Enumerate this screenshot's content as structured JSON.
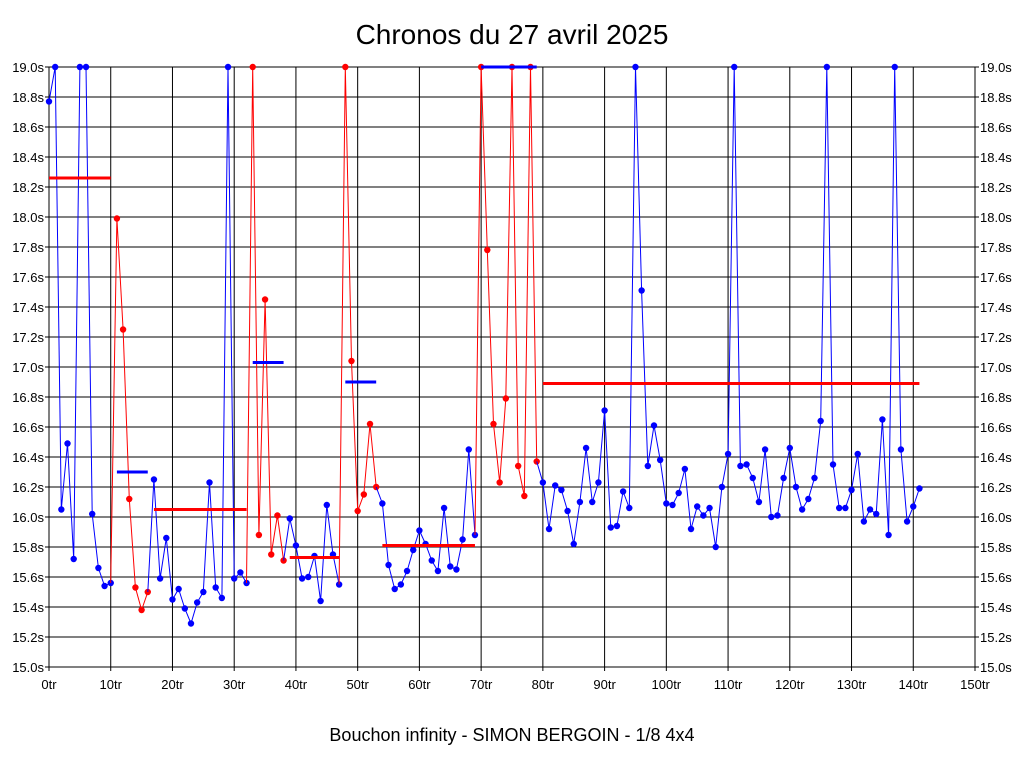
{
  "chart_data": {
    "type": "line",
    "title": "Chronos du 27 avril 2025",
    "xlabel": "Bouchon infinity - SIMON BERGOIN - 1/8 4x4",
    "ylabel": "",
    "xlim": [
      0,
      150
    ],
    "ylim": [
      15.0,
      19.0
    ],
    "x_ticks": [
      "0tr",
      "10tr",
      "20tr",
      "30tr",
      "40tr",
      "50tr",
      "60tr",
      "70tr",
      "80tr",
      "90tr",
      "100tr",
      "110tr",
      "120tr",
      "130tr",
      "140tr",
      "150tr"
    ],
    "y_ticks": [
      "15.0s",
      "15.2s",
      "15.4s",
      "15.6s",
      "15.8s",
      "16.0s",
      "16.2s",
      "16.4s",
      "16.6s",
      "16.8s",
      "17.0s",
      "17.2s",
      "17.4s",
      "17.6s",
      "17.8s",
      "18.0s",
      "18.2s",
      "18.4s",
      "18.6s",
      "18.8s",
      "19.0s"
    ],
    "grid": true,
    "series": [
      {
        "color": "#0000ff",
        "points": [
          [
            0,
            18.77
          ],
          [
            1,
            19.0
          ],
          [
            2,
            16.05
          ],
          [
            3,
            16.49
          ],
          [
            4,
            15.72
          ],
          [
            5,
            19.0
          ],
          [
            6,
            19.0
          ],
          [
            7,
            16.02
          ],
          [
            8,
            15.66
          ],
          [
            9,
            15.54
          ],
          [
            10,
            15.56
          ]
        ]
      },
      {
        "color": "#ff0000",
        "points": [
          [
            11,
            17.99
          ],
          [
            12,
            17.25
          ],
          [
            13,
            16.12
          ],
          [
            14,
            15.53
          ],
          [
            15,
            15.38
          ],
          [
            16,
            15.5
          ]
        ]
      },
      {
        "color": "#0000ff",
        "points": [
          [
            17,
            16.25
          ],
          [
            18,
            15.59
          ],
          [
            19,
            15.86
          ],
          [
            20,
            15.45
          ],
          [
            21,
            15.52
          ],
          [
            22,
            15.39
          ],
          [
            23,
            15.29
          ],
          [
            24,
            15.43
          ],
          [
            25,
            15.5
          ],
          [
            26,
            16.23
          ],
          [
            27,
            15.53
          ],
          [
            28,
            15.46
          ],
          [
            29,
            19.0
          ],
          [
            30,
            15.59
          ],
          [
            31,
            15.63
          ],
          [
            32,
            15.56
          ]
        ]
      },
      {
        "color": "#ff0000",
        "points": [
          [
            33,
            19.0
          ],
          [
            34,
            15.88
          ],
          [
            35,
            17.45
          ],
          [
            36,
            15.75
          ],
          [
            37,
            16.01
          ],
          [
            38,
            15.71
          ]
        ]
      },
      {
        "color": "#0000ff",
        "points": [
          [
            39,
            15.99
          ],
          [
            40,
            15.81
          ],
          [
            41,
            15.59
          ],
          [
            42,
            15.6
          ],
          [
            43,
            15.74
          ],
          [
            44,
            15.44
          ],
          [
            45,
            16.08
          ],
          [
            46,
            15.75
          ],
          [
            47,
            15.55
          ]
        ]
      },
      {
        "color": "#ff0000",
        "points": [
          [
            48,
            19.0
          ],
          [
            49,
            17.04
          ],
          [
            50,
            16.04
          ],
          [
            51,
            16.15
          ],
          [
            52,
            16.62
          ],
          [
            53,
            16.2
          ]
        ]
      },
      {
        "color": "#0000ff",
        "points": [
          [
            54,
            16.09
          ],
          [
            55,
            15.68
          ],
          [
            56,
            15.52
          ],
          [
            57,
            15.55
          ],
          [
            58,
            15.64
          ],
          [
            59,
            15.78
          ],
          [
            60,
            15.91
          ],
          [
            61,
            15.82
          ],
          [
            62,
            15.71
          ],
          [
            63,
            15.64
          ],
          [
            64,
            16.06
          ],
          [
            65,
            15.67
          ],
          [
            66,
            15.65
          ],
          [
            67,
            15.85
          ],
          [
            68,
            16.45
          ],
          [
            69,
            15.88
          ]
        ]
      },
      {
        "color": "#ff0000",
        "points": [
          [
            70,
            19.0
          ],
          [
            71,
            17.78
          ],
          [
            72,
            16.62
          ],
          [
            73,
            16.23
          ],
          [
            74,
            16.79
          ],
          [
            75,
            19.0
          ],
          [
            76,
            16.34
          ],
          [
            77,
            16.14
          ],
          [
            78,
            19.0
          ],
          [
            79,
            16.37
          ]
        ]
      },
      {
        "color": "#0000ff",
        "points": [
          [
            80,
            16.23
          ],
          [
            81,
            15.92
          ],
          [
            82,
            16.21
          ],
          [
            83,
            16.18
          ],
          [
            84,
            16.04
          ],
          [
            85,
            15.82
          ],
          [
            86,
            16.1
          ],
          [
            87,
            16.46
          ],
          [
            88,
            16.1
          ],
          [
            89,
            16.23
          ],
          [
            90,
            16.71
          ],
          [
            91,
            15.93
          ],
          [
            92,
            15.94
          ],
          [
            93,
            16.17
          ],
          [
            94,
            16.06
          ],
          [
            95,
            19.0
          ],
          [
            96,
            17.51
          ],
          [
            97,
            16.34
          ],
          [
            98,
            16.61
          ],
          [
            99,
            16.38
          ],
          [
            100,
            16.09
          ],
          [
            101,
            16.08
          ],
          [
            102,
            16.16
          ],
          [
            103,
            16.32
          ],
          [
            104,
            15.92
          ],
          [
            105,
            16.07
          ],
          [
            106,
            16.01
          ],
          [
            107,
            16.06
          ],
          [
            108,
            15.8
          ],
          [
            109,
            16.2
          ],
          [
            110,
            16.42
          ],
          [
            111,
            19.0
          ],
          [
            112,
            16.34
          ],
          [
            113,
            16.35
          ],
          [
            114,
            16.26
          ],
          [
            115,
            16.1
          ],
          [
            116,
            16.45
          ],
          [
            117,
            16.0
          ],
          [
            118,
            16.01
          ],
          [
            119,
            16.26
          ],
          [
            120,
            16.46
          ],
          [
            121,
            16.2
          ],
          [
            122,
            16.05
          ],
          [
            123,
            16.12
          ],
          [
            124,
            16.26
          ],
          [
            125,
            16.64
          ],
          [
            126,
            19.0
          ],
          [
            127,
            16.35
          ],
          [
            128,
            16.06
          ],
          [
            129,
            16.06
          ],
          [
            130,
            16.18
          ],
          [
            131,
            16.42
          ],
          [
            132,
            15.97
          ],
          [
            133,
            16.05
          ],
          [
            134,
            16.02
          ],
          [
            135,
            16.65
          ],
          [
            136,
            15.88
          ],
          [
            137,
            19.0
          ],
          [
            138,
            16.45
          ],
          [
            139,
            15.97
          ],
          [
            140,
            16.07
          ],
          [
            141,
            16.19
          ]
        ]
      }
    ],
    "averages": [
      {
        "color": "#ff0000",
        "x": [
          0,
          10
        ],
        "y": 18.26
      },
      {
        "color": "#0000ff",
        "x": [
          11,
          16
        ],
        "y": 16.3
      },
      {
        "color": "#ff0000",
        "x": [
          17,
          32
        ],
        "y": 16.05
      },
      {
        "color": "#0000ff",
        "x": [
          33,
          38
        ],
        "y": 17.03
      },
      {
        "color": "#ff0000",
        "x": [
          39,
          47
        ],
        "y": 15.73
      },
      {
        "color": "#0000ff",
        "x": [
          48,
          53
        ],
        "y": 16.9
      },
      {
        "color": "#ff0000",
        "x": [
          54,
          69
        ],
        "y": 15.81
      },
      {
        "color": "#0000ff",
        "x": [
          70,
          79
        ],
        "y": 19.0
      },
      {
        "color": "#ff0000",
        "x": [
          80,
          141
        ],
        "y": 16.89
      }
    ]
  }
}
